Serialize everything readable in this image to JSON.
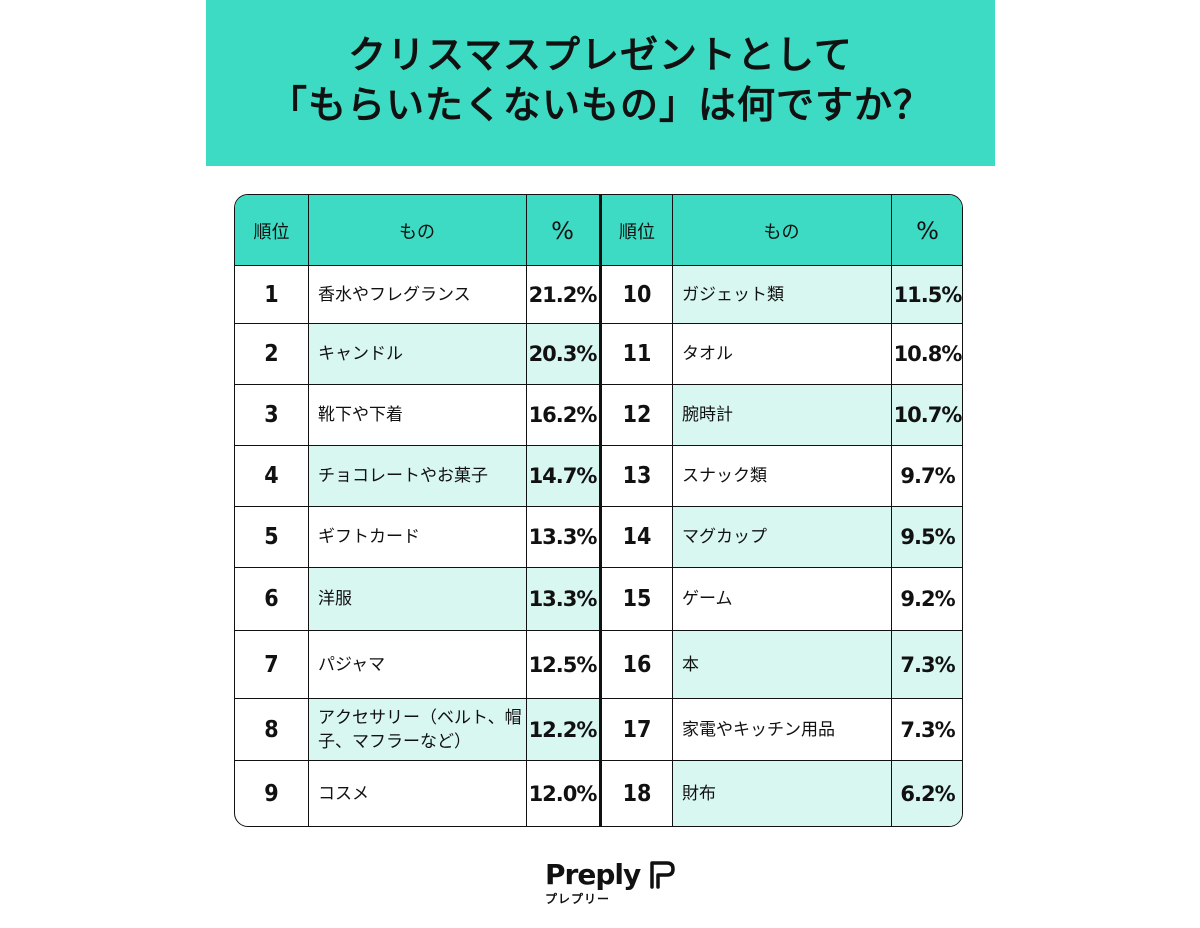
{
  "title": {
    "line1": "クリスマスプレゼントとして",
    "line2": "「もらいたくないもの」は何ですか？"
  },
  "table": {
    "headers": {
      "rank": "順位",
      "item": "もの",
      "pct": "%"
    },
    "left": [
      {
        "rank": "1",
        "item": "香水やフレグランス",
        "pct": "21.2%"
      },
      {
        "rank": "2",
        "item": "キャンドル",
        "pct": "20.3%"
      },
      {
        "rank": "3",
        "item": "靴下や下着",
        "pct": "16.2%"
      },
      {
        "rank": "4",
        "item": "チョコレートやお菓子",
        "pct": "14.7%"
      },
      {
        "rank": "5",
        "item": "ギフトカード",
        "pct": "13.3%"
      },
      {
        "rank": "6",
        "item": "洋服",
        "pct": "13.3%"
      },
      {
        "rank": "7",
        "item": "パジャマ",
        "pct": "12.5%"
      },
      {
        "rank": "8",
        "item": "アクセサリー（ベルト、帽子、マフラーなど）",
        "pct": "12.2%"
      },
      {
        "rank": "9",
        "item": "コスメ",
        "pct": "12.0%"
      }
    ],
    "right": [
      {
        "rank": "10",
        "item": "ガジェット類",
        "pct": "11.5%"
      },
      {
        "rank": "11",
        "item": "タオル",
        "pct": "10.8%"
      },
      {
        "rank": "12",
        "item": "腕時計",
        "pct": "10.7%"
      },
      {
        "rank": "13",
        "item": "スナック類",
        "pct": "9.7%"
      },
      {
        "rank": "14",
        "item": "マグカップ",
        "pct": "9.5%"
      },
      {
        "rank": "15",
        "item": "ゲーム",
        "pct": "9.2%"
      },
      {
        "rank": "16",
        "item": "本",
        "pct": "7.3%"
      },
      {
        "rank": "17",
        "item": "家電やキッチン用品",
        "pct": "7.3%"
      },
      {
        "rank": "18",
        "item": "財布",
        "pct": "6.2%"
      }
    ]
  },
  "brand": {
    "name": "Preply",
    "kana": "プレプリー"
  },
  "colors": {
    "accent": "#3ddbc3",
    "tint": "#d9f7f1",
    "text": "#111111"
  }
}
